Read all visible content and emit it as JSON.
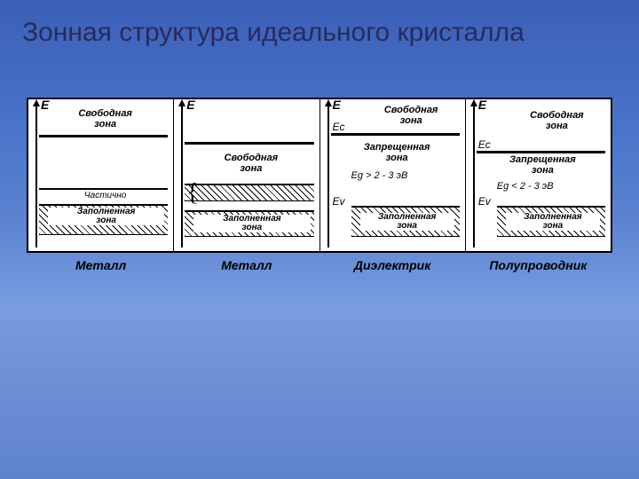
{
  "title": "Зонная структура идеального кристалла",
  "colors": {
    "bg_top": "#3a5fb8",
    "bg_bot": "#7a9de0",
    "panel_bg": "#ffffff",
    "line": "#000000",
    "text": "#000000",
    "title": "#2a2a5a"
  },
  "diagram": {
    "panels": [
      {
        "material": "Металл",
        "E": "E",
        "free": "Свободная\nзона",
        "partial": "Частично",
        "filled": "Заполненная\nзона"
      },
      {
        "material": "Металл",
        "E": "E",
        "free": "Свободная\nзона",
        "filled": "Заполненная\nзона"
      },
      {
        "material": "Диэлектрик",
        "E": "E",
        "Ec": "Eс",
        "Ev": "Ev",
        "free": "Свободная\nзона",
        "forbidden": "Запрещенная\nзона",
        "formula": "Eg > 2 - 3 эВ",
        "filled": "Заполненная\nзона"
      },
      {
        "material": "Полупроводник",
        "E": "E",
        "Ec": "Eс",
        "Ev": "Ev",
        "free": "Свободная\nзона",
        "forbidden": "Запрещенная\nзона",
        "formula": "Eg < 2 - 3 эВ",
        "filled": "Заполненная\nзона"
      }
    ]
  }
}
